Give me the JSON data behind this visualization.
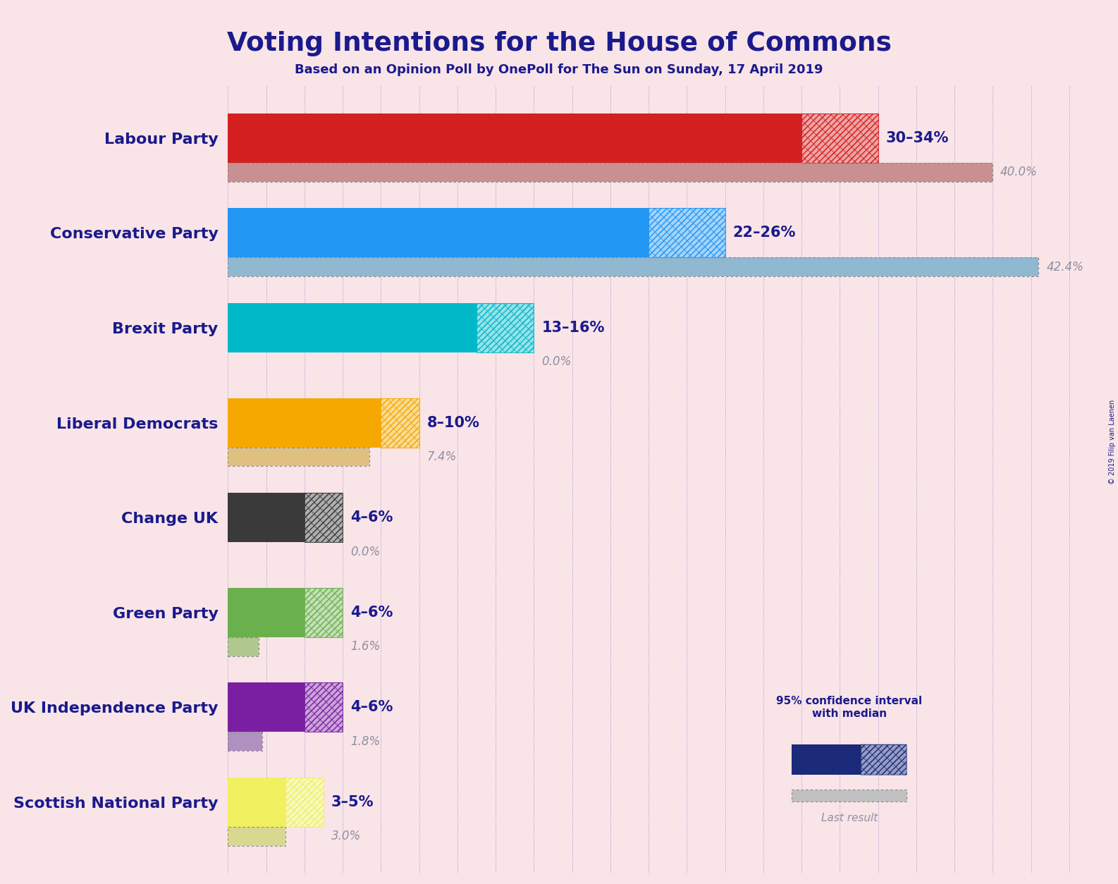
{
  "title": "Voting Intentions for the House of Commons",
  "subtitle": "Based on an Opinion Poll by OnePoll for The Sun on Sunday, 17 April 2019",
  "background_color": "#f9e4e8",
  "title_color": "#1a1a8c",
  "parties": [
    "Labour Party",
    "Conservative Party",
    "Brexit Party",
    "Liberal Democrats",
    "Change UK",
    "Green Party",
    "UK Independence Party",
    "Scottish National Party"
  ],
  "bar_colors": [
    "#d42020",
    "#2196f3",
    "#00b8c8",
    "#f5a800",
    "#3a3a3a",
    "#6ab04c",
    "#7b1fa2",
    "#f0f060"
  ],
  "last_result_colors": [
    "#c89090",
    "#90b8d0",
    "#90d0d8",
    "#e0c080",
    "#a0a0a0",
    "#b0c890",
    "#b090c0",
    "#d8d890"
  ],
  "ci_low": [
    30,
    22,
    13,
    8,
    4,
    4,
    4,
    3
  ],
  "ci_high": [
    34,
    26,
    16,
    10,
    6,
    6,
    6,
    5
  ],
  "last_result": [
    40.0,
    42.4,
    0.0,
    7.4,
    0.0,
    1.6,
    1.8,
    3.0
  ],
  "range_labels": [
    "30–34%",
    "22–26%",
    "13–16%",
    "8–10%",
    "4–6%",
    "4–6%",
    "4–6%",
    "3–5%"
  ],
  "last_result_labels": [
    "40.0%",
    "42.4%",
    "0.0%",
    "7.4%",
    "0.0%",
    "1.6%",
    "1.8%",
    "3.0%"
  ],
  "max_val": 46,
  "copyright": "© 2019 Filip van Laenen",
  "grid_color": "#5555aa",
  "label_color_last": "#9090a0"
}
